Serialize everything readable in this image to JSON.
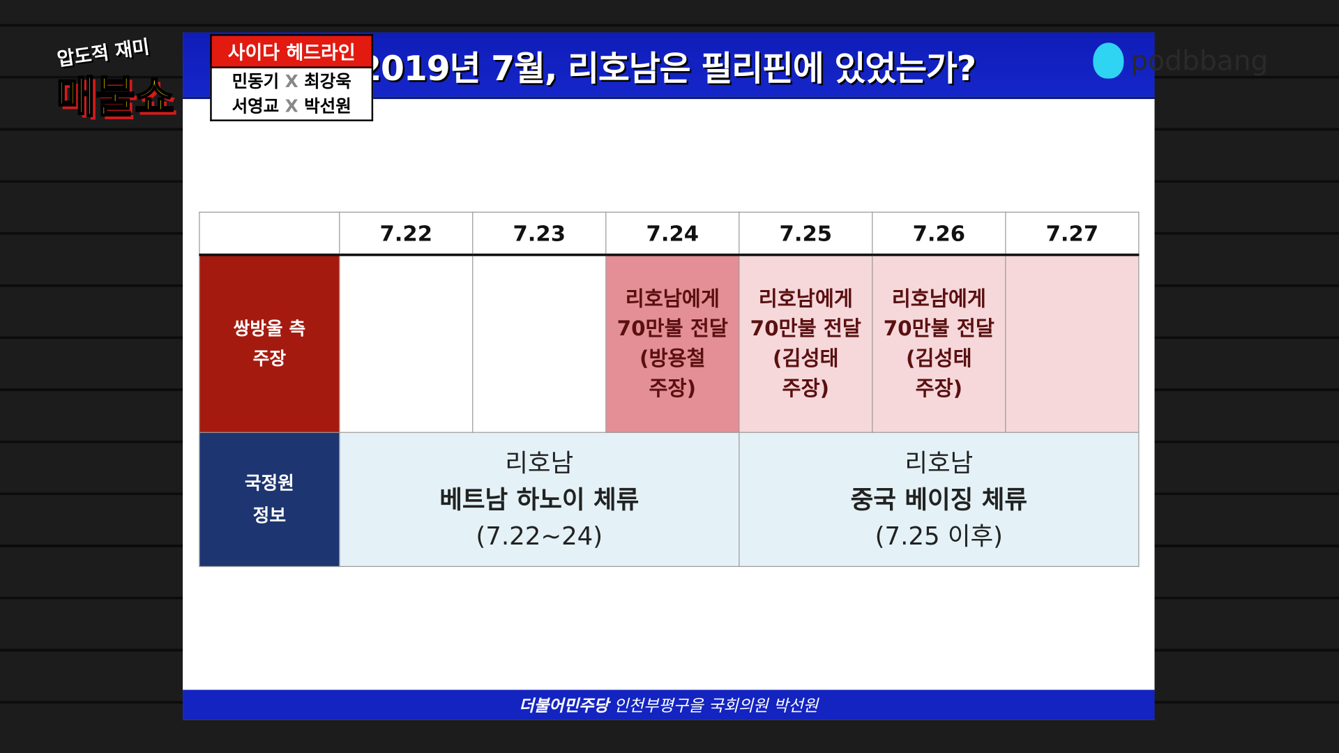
{
  "show": {
    "tagline": "압도적 재미",
    "name": "매불쇼"
  },
  "badge": {
    "label": "사이다 헤드라인",
    "row1": [
      "민동기",
      "X",
      "최강욱"
    ],
    "row2": [
      "서영교",
      "X",
      "박선원"
    ]
  },
  "header": {
    "title": "2019년 7월, 리호남은 필리핀에 있었는가?",
    "brand": "podbbang"
  },
  "table": {
    "dates": [
      "7.22",
      "7.23",
      "7.24",
      "7.25",
      "7.26",
      "7.27"
    ],
    "row1": {
      "label": [
        "쌍방울 측",
        "주장"
      ],
      "cells": [
        [],
        [],
        [
          "리호남에게",
          "70만불 전달",
          "(방용철",
          "주장)"
        ],
        [
          "리호남에게",
          "70만불 전달",
          "(김성태",
          "주장)"
        ],
        [
          "리호남에게",
          "70만불 전달",
          "(김성태",
          "주장)"
        ],
        []
      ]
    },
    "row2": {
      "label": [
        "국정원",
        "정보"
      ],
      "left": [
        "리호남",
        "베트남 하노이 체류",
        "(7.22~24)"
      ],
      "right": [
        "리호남",
        "중국 베이징 체류",
        "(7.25 이후)"
      ]
    }
  },
  "footer": {
    "party": "더불어민주당",
    "member": "인천부평구을 국회의원 박선원"
  },
  "colors": {
    "header_blue": "#1526c9",
    "claim_red": "#a51a0f",
    "nis_navy": "#1d3570",
    "highlight": "#e48f95",
    "light_pink": "#f6d8db",
    "light_blue": "#e4f2f7"
  }
}
